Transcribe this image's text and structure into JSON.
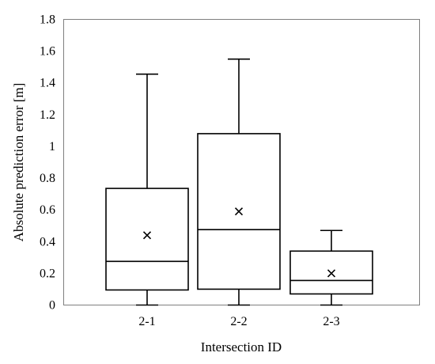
{
  "chart_data": {
    "type": "box",
    "xlabel": "Intersection ID",
    "ylabel": "Absolute prediction error [m]",
    "ylim": [
      0,
      1.8
    ],
    "ytick_labels": [
      "0",
      "0.2",
      "0.4",
      "0.6",
      "0.8",
      "1",
      "1.2",
      "1.4",
      "1.6",
      "1.8"
    ],
    "grid": false,
    "categories": [
      "2-1",
      "2-2",
      "2-3"
    ],
    "boxes": [
      {
        "category": "2-1",
        "min": 0.0,
        "q1": 0.095,
        "median": 0.275,
        "q3": 0.735,
        "max": 1.455,
        "mean": 0.44
      },
      {
        "category": "2-2",
        "min": 0.0,
        "q1": 0.1,
        "median": 0.475,
        "q3": 1.08,
        "max": 1.55,
        "mean": 0.59
      },
      {
        "category": "2-3",
        "min": 0.0,
        "q1": 0.07,
        "median": 0.155,
        "q3": 0.34,
        "max": 0.47,
        "mean": 0.2
      }
    ]
  }
}
